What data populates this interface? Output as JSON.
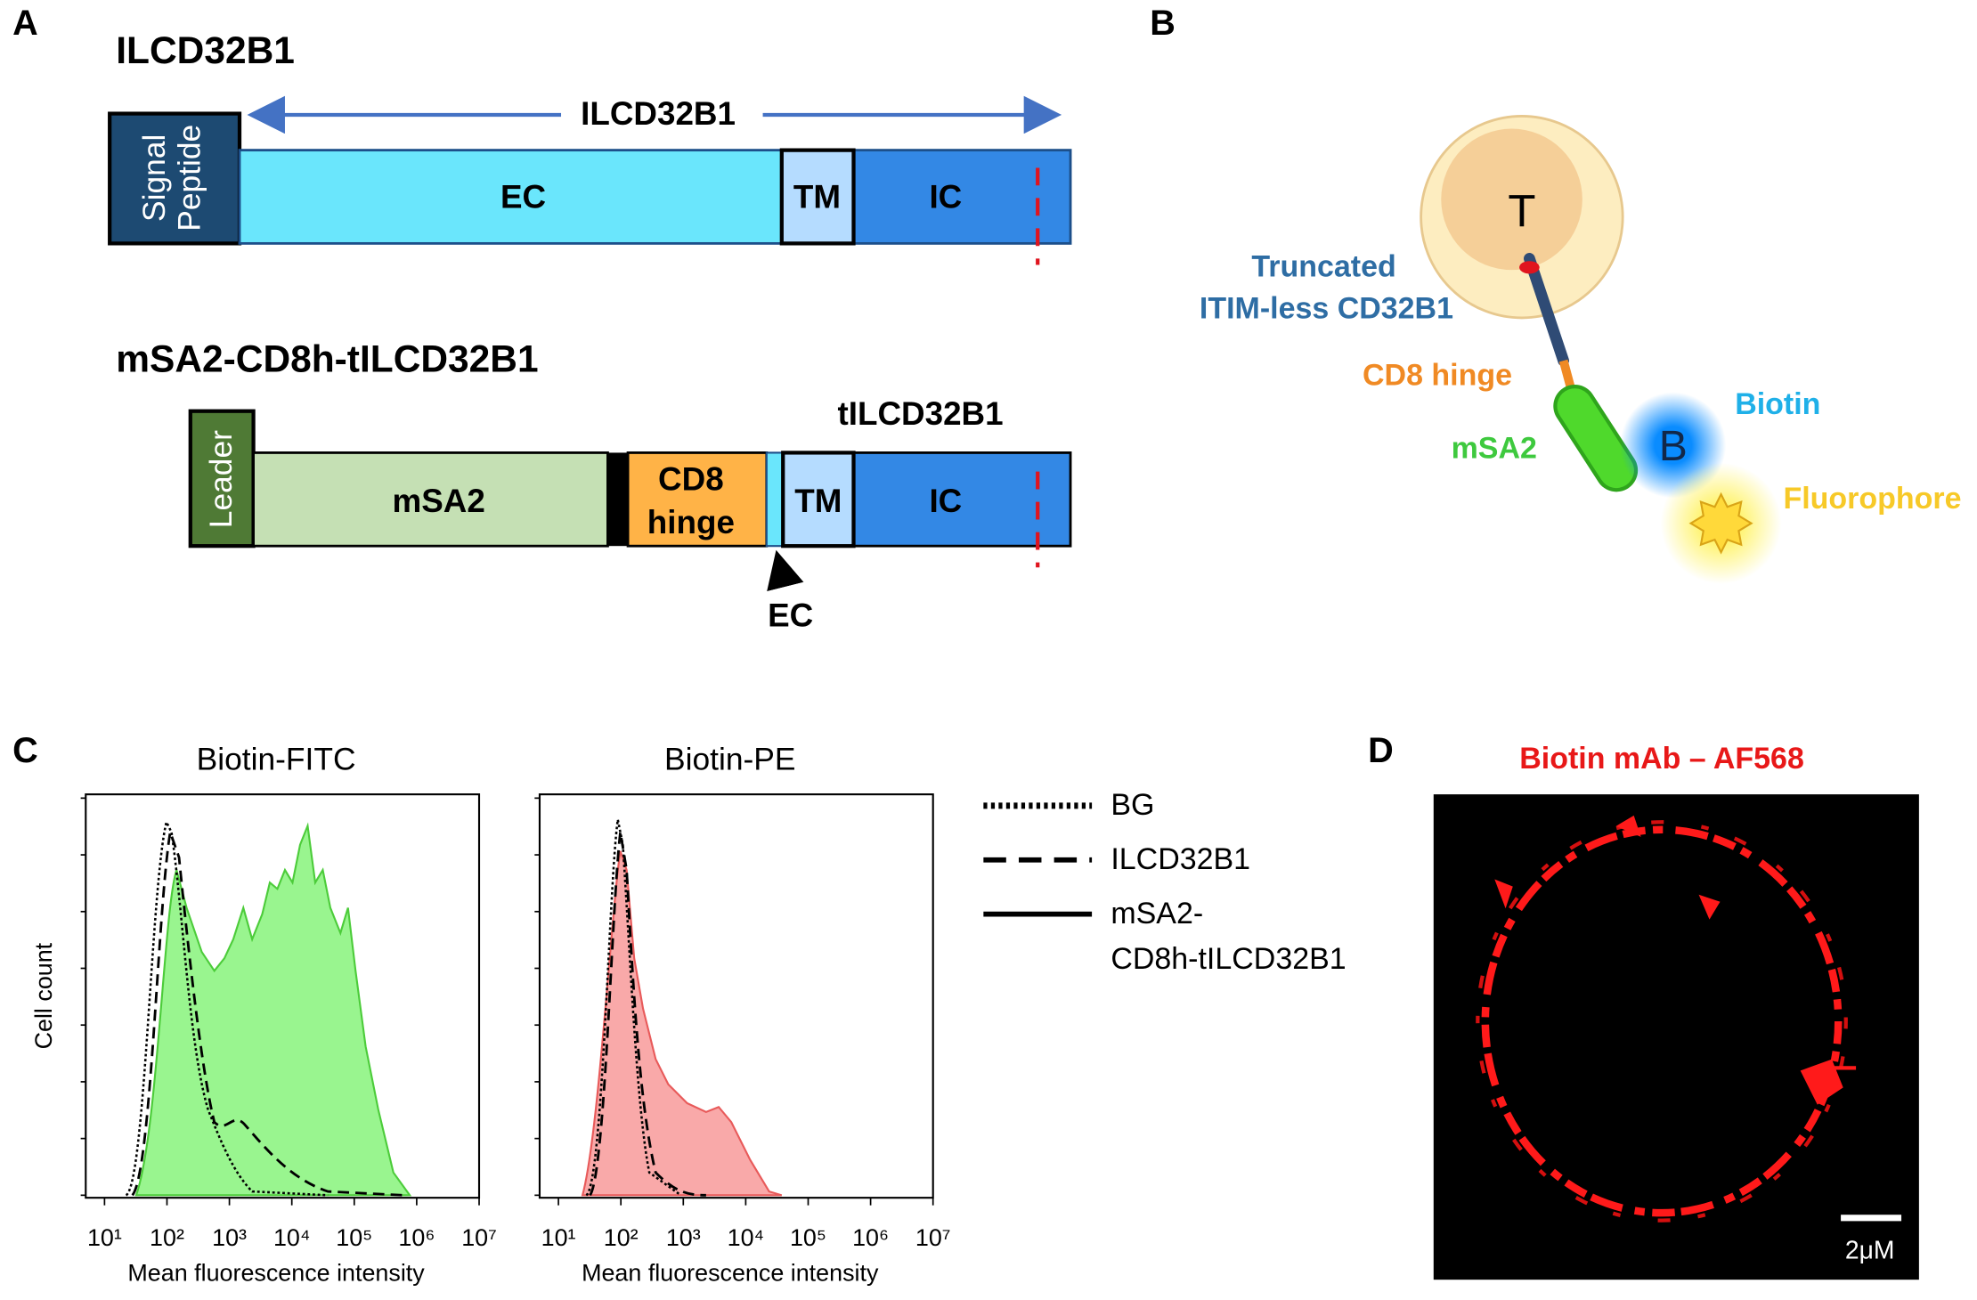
{
  "panel_a": {
    "label": "A",
    "construct_1": {
      "title": "ILCD32B1",
      "span_label": "ILCD32B1",
      "signal_peptide": [
        "Signal",
        "Peptide"
      ],
      "ec": "EC",
      "tm": "TM",
      "ic": "IC"
    },
    "construct_2": {
      "title": "mSA2-CD8h-tILCD32B1",
      "leader": "Leader",
      "msa2": "mSA2",
      "hinge": [
        "CD8",
        "hinge"
      ],
      "tm": "TM",
      "ic": "IC",
      "span_label": "tILCD32B1",
      "ec_arrow": "EC"
    }
  },
  "panel_b": {
    "label": "B",
    "cell": "T",
    "truncated": [
      "Truncated",
      "ITIM-less CD32B1"
    ],
    "hinge": "CD8 hinge",
    "msa2": "mSA2",
    "biotin_symbol": "B",
    "biotin": "Biotin",
    "fluorophore": "Fluorophore"
  },
  "panel_c": {
    "label": "C",
    "legend": [
      {
        "name": [
          "BG"
        ],
        "style": "dotted"
      },
      {
        "name": [
          "ILCD32B1"
        ],
        "style": "dashed"
      },
      {
        "name": [
          "mSA2-",
          "CD8h-tILCD32B1"
        ],
        "style": "solid"
      }
    ]
  },
  "chart_data": [
    {
      "type": "histogram",
      "title": "Biotin-FITC",
      "xlabel": "Mean fluorescence intensity",
      "ylabel": "Cell count",
      "xscale": "log",
      "xlim": [
        5,
        10000000
      ],
      "xticks": [
        {
          "value": 10,
          "label": "10¹"
        },
        {
          "value": 100,
          "label": "10²"
        },
        {
          "value": 1000,
          "label": "10³"
        },
        {
          "value": 10000,
          "label": "10⁴"
        },
        {
          "value": 100000,
          "label": "10⁵"
        },
        {
          "value": 1000000,
          "label": "10⁶"
        },
        {
          "value": 10000000,
          "label": "10⁷"
        }
      ]
    },
    {
      "type": "histogram",
      "title": "Biotin-PE",
      "xlabel": "Mean fluorescence intensity",
      "xscale": "log",
      "xlim": [
        5,
        10000000
      ],
      "xticks": [
        {
          "value": 10,
          "label": "10¹"
        },
        {
          "value": 100,
          "label": "10²"
        },
        {
          "value": 1000,
          "label": "10³"
        },
        {
          "value": 10000,
          "label": "10⁴"
        },
        {
          "value": 100000,
          "label": "10⁵"
        },
        {
          "value": 1000000,
          "label": "10⁶"
        },
        {
          "value": 10000000,
          "label": "10⁷"
        }
      ]
    }
  ],
  "panel_d": {
    "label": "D",
    "title": "Biotin mAb – AF568",
    "scale_bar": "2μM"
  }
}
